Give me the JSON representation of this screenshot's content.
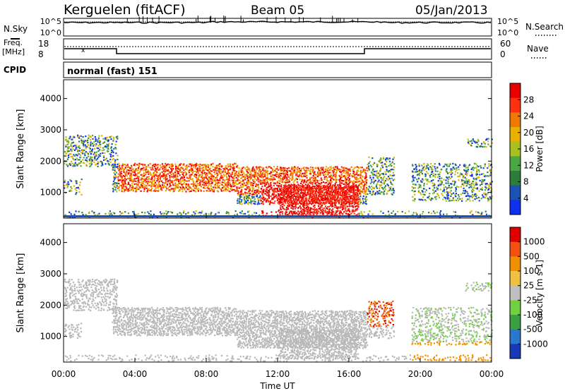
{
  "header": {
    "station": "Kerguelen (fitACF)",
    "beam": "Beam 05",
    "date": "05/Jan/2013"
  },
  "noise_panel": {
    "left_label": "N.Sky",
    "left_ticks": [
      "10^5",
      "10^0"
    ],
    "right_label": "N.Search",
    "right_ticks": [
      "10^5",
      "10^0"
    ]
  },
  "freq_panel": {
    "left_label_1": "Freq.",
    "left_label_2": "[MHz]",
    "left_ticks": [
      "18",
      "8"
    ],
    "right_label": "Nave",
    "right_ticks": [
      "60",
      "0"
    ],
    "marker": "x"
  },
  "cpid": {
    "label": "CPID",
    "value": "normal (fast) 151"
  },
  "chart_data": [
    {
      "type": "heatmap",
      "title": "Power",
      "ylabel": "Slant Range [km]",
      "xlabel": "Time UT",
      "ylim": [
        180,
        4600
      ],
      "y_ticks": [
        "1000",
        "2000",
        "3000",
        "4000"
      ],
      "x_ticks": [
        "00:00",
        "04:00",
        "08:00",
        "12:00",
        "16:00",
        "20:00",
        "00:00"
      ],
      "colorbar_label": "Power [dB]",
      "colorbar_ticks": [
        "4",
        "8",
        "12",
        "16",
        "20",
        "24",
        "28"
      ],
      "colorbar_colors": [
        "#1030f0",
        "#1a52b8",
        "#2d7d3a",
        "#4aa844",
        "#a8c020",
        "#e8b000",
        "#f07800",
        "#ff3010",
        "#e80000"
      ],
      "ground_scatter_color": "#888888"
    },
    {
      "type": "heatmap",
      "title": "Velocity",
      "ylabel": "Slant Range [km]",
      "xlabel": "Time UT",
      "ylim": [
        180,
        4600
      ],
      "y_ticks": [
        "1000",
        "2000",
        "3000",
        "4000"
      ],
      "x_ticks": [
        "00:00",
        "04:00",
        "08:00",
        "12:00",
        "16:00",
        "20:00",
        "00:00"
      ],
      "colorbar_label": "Velocity [m s-1]",
      "colorbar_ticks": [
        "1000",
        "500",
        "100",
        "25",
        "-25",
        "-100",
        "-500",
        "-1000"
      ],
      "colorbar_colors": [
        "#1838b8",
        "#2878d0",
        "#3aa040",
        "#70d040",
        "#c0c0c0",
        "#f0c040",
        "#f09000",
        "#f05010",
        "#e00000"
      ],
      "ground_scatter_color": "#b8b8b8"
    }
  ],
  "xaxis": {
    "label": "Time UT"
  }
}
